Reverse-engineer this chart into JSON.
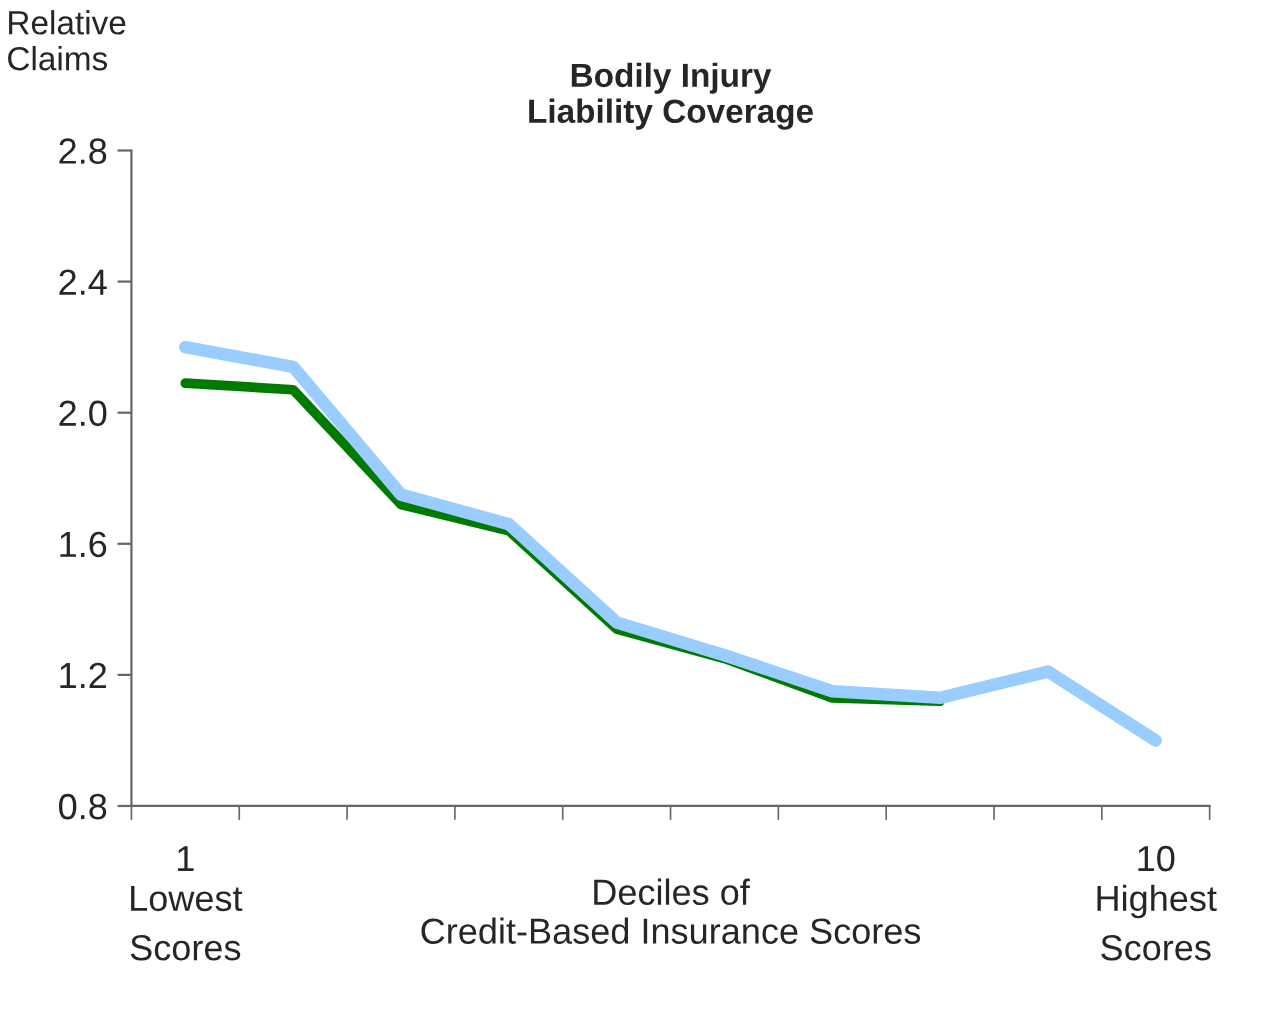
{
  "chart_data": {
    "type": "line",
    "title": "Bodily Injury\nLiability Coverage",
    "ylabel": "Relative\nClaims",
    "xlabel": "Deciles of\nCredit-Based Insurance Scores",
    "annotations": [
      "Lowest\nScores",
      "Highest\nScores"
    ],
    "categories": [
      "1",
      null,
      null,
      null,
      null,
      null,
      null,
      null,
      null,
      "10"
    ],
    "series": [
      {
        "color": "#007a00",
        "values": [
          2.09,
          2.07,
          1.72,
          1.64,
          1.34,
          1.25,
          1.13,
          1.12,
          null,
          null
        ]
      },
      {
        "color": "#99ccff",
        "values": [
          2.2,
          2.14,
          1.75,
          1.66,
          1.36,
          1.26,
          1.15,
          1.13,
          1.21,
          1.0
        ]
      }
    ],
    "ylim": [
      0.8,
      2.8
    ],
    "yticks": [
      0.8,
      1.2,
      1.6,
      {
        "value": 2.0,
        "label": "2.0"
      },
      2.4,
      2.8
    ],
    "grid": false,
    "legend": false,
    "marker": "none",
    "line_style": "solid"
  }
}
